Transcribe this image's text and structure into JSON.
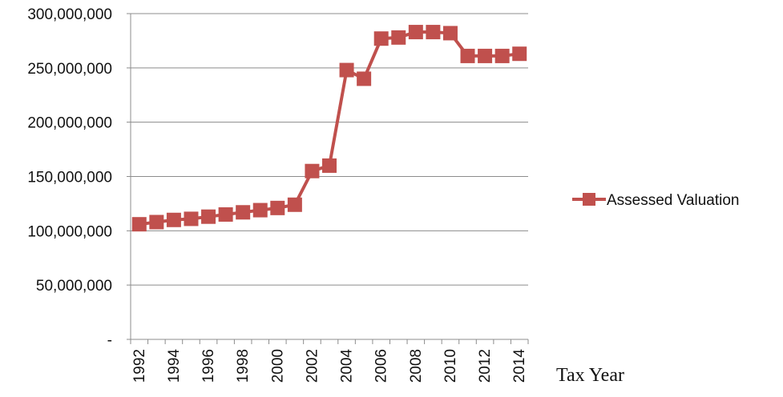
{
  "chart_data": {
    "type": "line",
    "title": "",
    "xlabel": "Tax Year",
    "ylabel": "",
    "x": [
      1992,
      1993,
      1994,
      1995,
      1996,
      1997,
      1998,
      1999,
      2000,
      2001,
      2002,
      2003,
      2004,
      2005,
      2006,
      2007,
      2008,
      2009,
      2010,
      2011,
      2012,
      2013,
      2014
    ],
    "x_tick_labels": [
      "1992",
      "1994",
      "1996",
      "1998",
      "2000",
      "2002",
      "2004",
      "2006",
      "2008",
      "2010",
      "2012",
      "2014"
    ],
    "y_tick_labels": [
      "-",
      "50,000,000",
      "100,000,000",
      "150,000,000",
      "200,000,000",
      "250,000,000",
      "300,000,000"
    ],
    "ylim": [
      0,
      300000000
    ],
    "grid": true,
    "legend_position": "right",
    "series": [
      {
        "name": "Assessed Valuation",
        "color": "#c0504d",
        "values": [
          106000000,
          108000000,
          110000000,
          111000000,
          113000000,
          115000000,
          117000000,
          119000000,
          121000000,
          124000000,
          155000000,
          160000000,
          248000000,
          240000000,
          277000000,
          278000000,
          283000000,
          283000000,
          282000000,
          261000000,
          261000000,
          261000000,
          263000000
        ]
      }
    ]
  }
}
